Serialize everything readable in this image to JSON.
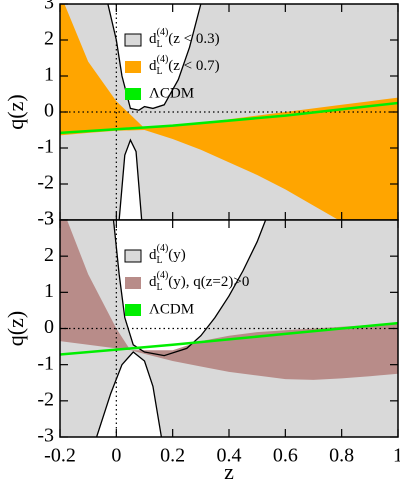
{
  "chart_data": [
    {
      "type": "band",
      "ylabel": "q(z)",
      "xlim": [
        -0.2,
        1
      ],
      "ylim": [
        -3,
        3
      ],
      "yticks": [
        -3,
        -2,
        -1,
        0,
        1,
        2,
        3
      ],
      "zero_lines": true,
      "excluded": [
        {
          "side": "above",
          "x": [
            -0.03,
            0,
            0.02,
            0.05,
            0.08,
            0.1,
            0.13,
            0.17,
            0.22,
            0.26,
            0.3
          ],
          "values": [
            3,
            2,
            1,
            0.1,
            0.05,
            0.15,
            0.1,
            0.2,
            0.9,
            1.8,
            3
          ]
        },
        {
          "side": "below",
          "x": [
            0.01,
            0.03,
            0.05,
            0.07,
            0.09
          ],
          "values": [
            -3,
            -1.2,
            -0.78,
            -1.1,
            -3
          ]
        }
      ],
      "series": [
        {
          "kind": "region",
          "name": {
            "base": "d",
            "sub": "L",
            "sup": "(4)",
            "text": "(z < 0.3)"
          },
          "color": "#d9d9d9"
        },
        {
          "kind": "band",
          "name": {
            "base": "d",
            "sub": "L",
            "sup": "(4)",
            "text": "(z < 0.7)"
          },
          "color": "#ffa500",
          "x": [
            -0.2,
            -0.1,
            0,
            0.1,
            0.2,
            0.3,
            0.4,
            0.5,
            0.6,
            0.7,
            0.8,
            0.9,
            1
          ],
          "upper": [
            3.3,
            1.4,
            0.3,
            -0.45,
            -0.4,
            -0.3,
            -0.2,
            -0.1,
            0,
            0.1,
            0.2,
            0.3,
            0.4
          ],
          "lower": [
            -0.65,
            -0.58,
            -0.52,
            -0.5,
            -0.75,
            -1.05,
            -1.4,
            -1.75,
            -2.15,
            -2.6,
            -3.05,
            -3.5,
            -4
          ]
        },
        {
          "kind": "line",
          "name": "ΛCDM",
          "color": "#00ee00",
          "x": [
            -0.2,
            0.2,
            0.6,
            1
          ],
          "values": [
            -0.58,
            -0.38,
            -0.1,
            0.25
          ]
        }
      ]
    },
    {
      "type": "band",
      "ylabel": "q(z)",
      "xlabel": "z",
      "xlim": [
        -0.2,
        1
      ],
      "ylim": [
        -3,
        3
      ],
      "yticks": [
        -3,
        -2,
        -1,
        0,
        1,
        2,
        3
      ],
      "xticks": [
        -0.2,
        0,
        0.2,
        0.4,
        0.6,
        0.8,
        1
      ],
      "zero_lines": true,
      "excluded": [
        {
          "side": "above",
          "x": [
            -0.01,
            0.01,
            0.03,
            0.06,
            0.1,
            0.17,
            0.25,
            0.3,
            0.35,
            0.4,
            0.45,
            0.5,
            0.53
          ],
          "values": [
            3,
            1.5,
            0.3,
            -0.45,
            -0.65,
            -0.75,
            -0.55,
            -0.2,
            0.3,
            0.9,
            1.6,
            2.4,
            3
          ]
        },
        {
          "side": "below",
          "x": [
            -0.07,
            -0.02,
            0.02,
            0.06,
            0.1,
            0.13,
            0.16
          ],
          "values": [
            -3,
            -1.8,
            -1,
            -0.65,
            -0.9,
            -1.6,
            -3
          ]
        }
      ],
      "series": [
        {
          "kind": "region",
          "name": {
            "base": "d",
            "sub": "L",
            "sup": "(4)",
            "text": "(y)"
          },
          "color": "#d9d9d9"
        },
        {
          "kind": "band",
          "name": {
            "base": "d",
            "sub": "L",
            "sup": "(4)",
            "text": "(y), q(z=2)>0"
          },
          "color": "#b88c89",
          "x": [
            -0.2,
            -0.1,
            0,
            0.05,
            0.1,
            0.2,
            0.3,
            0.4,
            0.5,
            0.6,
            0.7,
            0.8,
            0.9,
            1
          ],
          "upper": [
            3.5,
            1.5,
            0,
            -0.6,
            -0.6,
            -0.6,
            -0.35,
            -0.2,
            -0.1,
            -0.05,
            0,
            0.05,
            0.1,
            0.15
          ],
          "lower": [
            -0.35,
            -0.45,
            -0.55,
            -0.6,
            -0.7,
            -0.9,
            -1.05,
            -1.2,
            -1.3,
            -1.4,
            -1.42,
            -1.38,
            -1.32,
            -1.25
          ]
        },
        {
          "kind": "line",
          "name": "ΛCDM",
          "color": "#00ee00",
          "x": [
            -0.2,
            0.2,
            0.6,
            1
          ],
          "values": [
            -0.72,
            -0.45,
            -0.15,
            0.15
          ]
        }
      ]
    }
  ]
}
